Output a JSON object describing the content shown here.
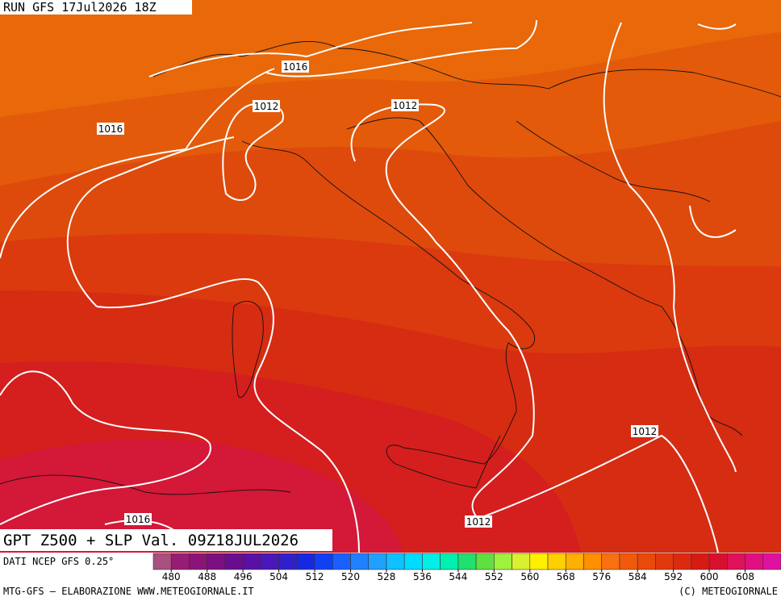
{
  "header": {
    "run": "RUN GFS 17Jul2026 18Z"
  },
  "map": {
    "title": "GPT Z500 + SLP Val. 09Z18JUL2026",
    "isobars": [
      {
        "label": 1016
      },
      {
        "label": 1012
      },
      {
        "label": 1016
      },
      {
        "label": 1012
      },
      {
        "label": 1012
      },
      {
        "label": 1012
      },
      {
        "label": 1016
      }
    ]
  },
  "colorbar": {
    "source": "DATI NCEP GFS 0.25°",
    "range": [
      476,
      616
    ],
    "ticks": [
      480,
      488,
      496,
      504,
      512,
      520,
      528,
      536,
      544,
      552,
      560,
      568,
      576,
      584,
      592,
      600,
      608
    ],
    "colors": [
      "#a8507e",
      "#961c74",
      "#8a1478",
      "#7a1080",
      "#6a0c90",
      "#5a10a4",
      "#4818b8",
      "#3020cc",
      "#1828e0",
      "#1040f4",
      "#1860ff",
      "#2080ff",
      "#20a0ff",
      "#10c0ff",
      "#00dcff",
      "#00f0e8",
      "#00f0b0",
      "#20e070",
      "#60e040",
      "#a0f040",
      "#d8f030",
      "#fff000",
      "#ffd000",
      "#ffb000",
      "#ff9000",
      "#f87010",
      "#f05a0a",
      "#e84a0a",
      "#e03a0c",
      "#dc2a10",
      "#d81a14",
      "#d81030",
      "#e0105a",
      "#e01080",
      "#e010a0"
    ]
  },
  "footer": {
    "left": "MTG-GFS — ELABORAZIONE WWW.METEOGIORNALE.IT",
    "right": "(C) METEOGIORNALE"
  }
}
